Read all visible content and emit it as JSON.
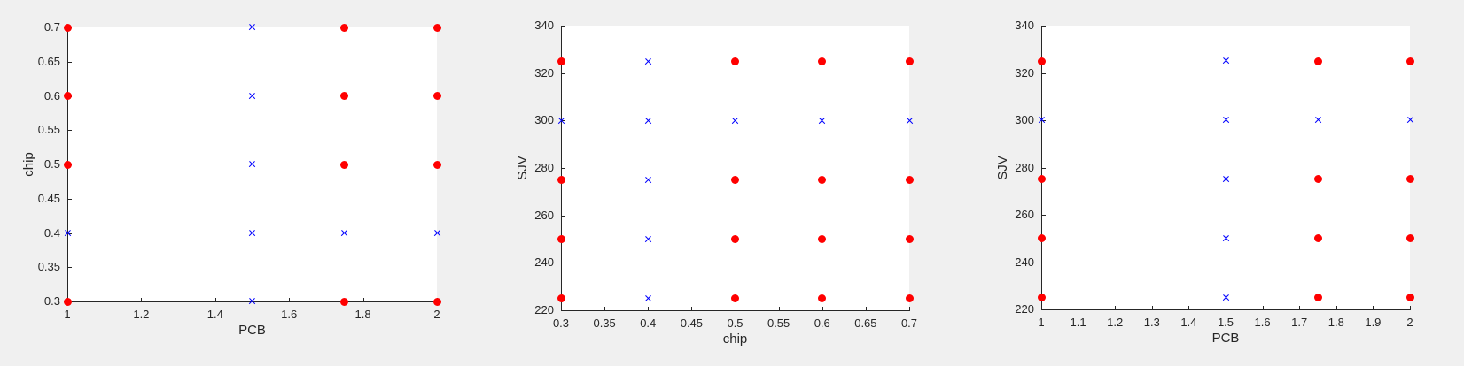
{
  "figure": {
    "background_color": "#f0f0f0",
    "plot_background_color": "#ffffff",
    "axis_color": "#262626",
    "marker_colors": {
      "red": "#ff0000",
      "blue": "#0000ff"
    }
  },
  "chart_data": [
    {
      "type": "scatter",
      "title": "",
      "xlabel": "PCB",
      "ylabel": "chip",
      "xlim": [
        1,
        2
      ],
      "ylim": [
        0.3,
        0.7
      ],
      "xticks": [
        1,
        1.2,
        1.4,
        1.6,
        1.8,
        2
      ],
      "xtick_labels": [
        "1",
        "1.2",
        "1.4",
        "1.6",
        "1.8",
        "2"
      ],
      "yticks": [
        0.3,
        0.35,
        0.4,
        0.45,
        0.5,
        0.55,
        0.6,
        0.65,
        0.7
      ],
      "ytick_labels": [
        "0.3",
        "0.35",
        "0.4",
        "0.45",
        "0.5",
        "0.55",
        "0.6",
        "0.65",
        "0.7"
      ],
      "grid": false,
      "legend": null,
      "series": [
        {
          "name": "red-filled-circles",
          "marker": "filled-circle",
          "color": "#ff0000",
          "points": [
            [
              1,
              0.3
            ],
            [
              1,
              0.5
            ],
            [
              1,
              0.6
            ],
            [
              1,
              0.7
            ],
            [
              1.75,
              0.3
            ],
            [
              1.75,
              0.5
            ],
            [
              1.75,
              0.6
            ],
            [
              1.75,
              0.7
            ],
            [
              2,
              0.3
            ],
            [
              2,
              0.5
            ],
            [
              2,
              0.6
            ],
            [
              2,
              0.7
            ]
          ]
        },
        {
          "name": "blue-x-markers",
          "marker": "x",
          "color": "#0000ff",
          "points": [
            [
              1,
              0.4
            ],
            [
              1.5,
              0.3
            ],
            [
              1.5,
              0.4
            ],
            [
              1.5,
              0.5
            ],
            [
              1.5,
              0.6
            ],
            [
              1.5,
              0.7
            ],
            [
              1.75,
              0.4
            ],
            [
              2,
              0.4
            ]
          ]
        }
      ]
    },
    {
      "type": "scatter",
      "title": "",
      "xlabel": "chip",
      "ylabel": "SJV",
      "xlim": [
        0.3,
        0.7
      ],
      "ylim": [
        220,
        340
      ],
      "xticks": [
        0.3,
        0.35,
        0.4,
        0.45,
        0.5,
        0.55,
        0.6,
        0.65,
        0.7
      ],
      "xtick_labels": [
        "0.3",
        "0.35",
        "0.4",
        "0.45",
        "0.5",
        "0.55",
        "0.6",
        "0.65",
        "0.7"
      ],
      "yticks": [
        220,
        240,
        260,
        280,
        300,
        320,
        340
      ],
      "ytick_labels": [
        "220",
        "240",
        "260",
        "280",
        "300",
        "320",
        "340"
      ],
      "grid": false,
      "legend": null,
      "series": [
        {
          "name": "red-filled-circles",
          "marker": "filled-circle",
          "color": "#ff0000",
          "points": [
            [
              0.3,
              225
            ],
            [
              0.3,
              250
            ],
            [
              0.3,
              275
            ],
            [
              0.3,
              325
            ],
            [
              0.5,
              225
            ],
            [
              0.5,
              250
            ],
            [
              0.5,
              275
            ],
            [
              0.5,
              325
            ],
            [
              0.6,
              225
            ],
            [
              0.6,
              250
            ],
            [
              0.6,
              275
            ],
            [
              0.6,
              325
            ],
            [
              0.7,
              225
            ],
            [
              0.7,
              250
            ],
            [
              0.7,
              275
            ],
            [
              0.7,
              325
            ]
          ]
        },
        {
          "name": "blue-x-markers",
          "marker": "x",
          "color": "#0000ff",
          "points": [
            [
              0.3,
              300
            ],
            [
              0.4,
              225
            ],
            [
              0.4,
              250
            ],
            [
              0.4,
              275
            ],
            [
              0.4,
              300
            ],
            [
              0.4,
              325
            ],
            [
              0.5,
              300
            ],
            [
              0.6,
              300
            ],
            [
              0.7,
              300
            ]
          ]
        }
      ]
    },
    {
      "type": "scatter",
      "title": "",
      "xlabel": "PCB",
      "ylabel": "SJV",
      "xlim": [
        1,
        2
      ],
      "ylim": [
        220,
        340
      ],
      "xticks": [
        1,
        1.1,
        1.2,
        1.3,
        1.4,
        1.5,
        1.6,
        1.7,
        1.8,
        1.9,
        2
      ],
      "xtick_labels": [
        "1",
        "1.1",
        "1.2",
        "1.3",
        "1.4",
        "1.5",
        "1.6",
        "1.7",
        "1.8",
        "1.9",
        "2"
      ],
      "yticks": [
        220,
        240,
        260,
        280,
        300,
        320,
        340
      ],
      "ytick_labels": [
        "220",
        "240",
        "260",
        "280",
        "300",
        "320",
        "340"
      ],
      "grid": false,
      "legend": null,
      "series": [
        {
          "name": "red-filled-circles",
          "marker": "filled-circle",
          "color": "#ff0000",
          "points": [
            [
              1,
              225
            ],
            [
              1,
              250
            ],
            [
              1,
              275
            ],
            [
              1,
              325
            ],
            [
              1.75,
              225
            ],
            [
              1.75,
              250
            ],
            [
              1.75,
              275
            ],
            [
              1.75,
              325
            ],
            [
              2,
              225
            ],
            [
              2,
              250
            ],
            [
              2,
              275
            ],
            [
              2,
              325
            ]
          ]
        },
        {
          "name": "blue-x-markers",
          "marker": "x",
          "color": "#0000ff",
          "points": [
            [
              1,
              300
            ],
            [
              1.5,
              225
            ],
            [
              1.5,
              250
            ],
            [
              1.5,
              275
            ],
            [
              1.5,
              300
            ],
            [
              1.5,
              325
            ],
            [
              1.75,
              300
            ],
            [
              2,
              300
            ]
          ]
        }
      ]
    }
  ]
}
